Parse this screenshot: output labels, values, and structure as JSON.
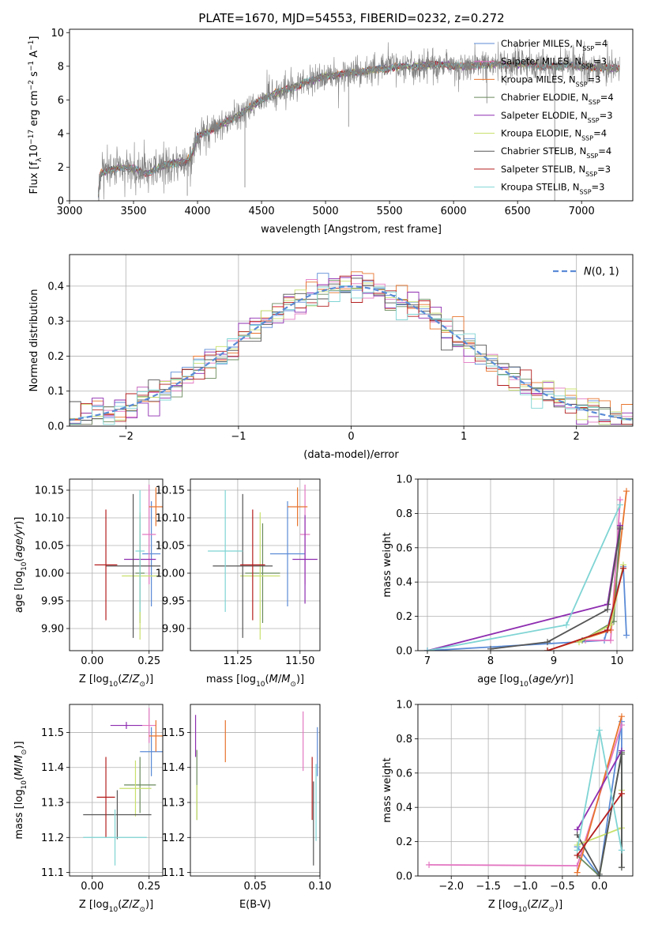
{
  "figure": {
    "title": "PLATE=1670, MJD=54553, FIBERID=0232, z=0.272"
  },
  "colors": {
    "chabrier_miles": "#5b8bd6",
    "salpeter_miles": "#e377c2",
    "kroupa_miles": "#e8742d",
    "chabrier_elodie": "#6a8a5c",
    "salpeter_elodie": "#8e2db0",
    "kroupa_elodie": "#c8e06c",
    "chabrier_stelib": "#555555",
    "salpeter_stelib": "#b41e1e",
    "kroupa_stelib": "#7fd4d4",
    "gaussian": "#5b8bd6",
    "spectrum": "#808080"
  },
  "chart_data": [
    {
      "id": "spectrum",
      "type": "line",
      "title": "PLATE=1670, MJD=54553, FIBERID=0232, z=0.272",
      "xlabel": "wavelength [Angstrom, rest frame]",
      "ylabel": "Flux [f_λ 10^-17 erg cm^-2 s^-1 A^-1]",
      "xlim": [
        3000,
        7400
      ],
      "ylim": [
        0,
        10.2
      ],
      "xticks": [
        3000,
        3500,
        4000,
        4500,
        5000,
        5500,
        6000,
        6500,
        7000
      ],
      "yticks": [
        0,
        2,
        4,
        6,
        8,
        10
      ],
      "grid": false,
      "legend_position": "top-right",
      "continuum": [
        [
          3220,
          0
        ],
        [
          3240,
          1.6
        ],
        [
          3300,
          1.8
        ],
        [
          3400,
          2.0
        ],
        [
          3500,
          1.9
        ],
        [
          3600,
          1.6
        ],
        [
          3700,
          2.0
        ],
        [
          3800,
          2.2
        ],
        [
          3900,
          2.3
        ],
        [
          3950,
          2.6
        ],
        [
          4000,
          3.8
        ],
        [
          4100,
          4.2
        ],
        [
          4200,
          4.6
        ],
        [
          4300,
          5.0
        ],
        [
          4400,
          5.5
        ],
        [
          4500,
          6.0
        ],
        [
          4600,
          6.4
        ],
        [
          4700,
          6.6
        ],
        [
          4800,
          6.9
        ],
        [
          4900,
          7.2
        ],
        [
          5000,
          7.4
        ],
        [
          5100,
          7.5
        ],
        [
          5200,
          7.6
        ],
        [
          5300,
          7.7
        ],
        [
          5400,
          7.8
        ],
        [
          5500,
          7.9
        ],
        [
          5600,
          8.0
        ],
        [
          5700,
          8.0
        ],
        [
          5800,
          8.1
        ],
        [
          5900,
          8.1
        ],
        [
          6000,
          8.0
        ],
        [
          6100,
          8.0
        ],
        [
          6200,
          8.1
        ],
        [
          6300,
          8.1
        ],
        [
          6400,
          8.1
        ],
        [
          6500,
          8.1
        ],
        [
          6600,
          8.1
        ],
        [
          6700,
          8.0
        ],
        [
          6800,
          8.0
        ],
        [
          6900,
          8.1
        ],
        [
          7000,
          8.0
        ],
        [
          7100,
          7.9
        ],
        [
          7200,
          7.9
        ],
        [
          7300,
          7.9
        ]
      ],
      "legend": [
        {
          "label": "Chabrier MILES, N_SSP=4",
          "base": "Chabrier MILES, N",
          "sub": "SSP",
          "tail": "=4",
          "color": "#5b8bd6"
        },
        {
          "label": "Salpeter MILES, N_SSP=3",
          "base": "Salpeter MILES, N",
          "sub": "SSP",
          "tail": "=3",
          "color": "#e377c2"
        },
        {
          "label": "Kroupa MILES, N_SSP=3",
          "base": "Kroupa MILES, N",
          "sub": "SSP",
          "tail": "=3",
          "color": "#e8742d"
        },
        {
          "label": "Chabrier ELODIE, N_SSP=4",
          "base": "Chabrier ELODIE, N",
          "sub": "SSP",
          "tail": "=4",
          "color": "#6a8a5c"
        },
        {
          "label": "Salpeter ELODIE, N_SSP=3",
          "base": "Salpeter ELODIE, N",
          "sub": "SSP",
          "tail": "=3",
          "color": "#8e2db0"
        },
        {
          "label": "Kroupa ELODIE, N_SSP=4",
          "base": "Kroupa ELODIE, N",
          "sub": "SSP",
          "tail": "=4",
          "color": "#c8e06c"
        },
        {
          "label": "Chabrier STELIB, N_SSP=4",
          "base": "Chabrier STELIB, N",
          "sub": "SSP",
          "tail": "=4",
          "color": "#555555"
        },
        {
          "label": "Salpeter STELIB, N_SSP=3",
          "base": "Salpeter STELIB, N",
          "sub": "SSP",
          "tail": "=3",
          "color": "#b41e1e"
        },
        {
          "label": "Kroupa STELIB, N_SSP=3",
          "base": "Kroupa STELIB, N",
          "sub": "SSP",
          "tail": "=3",
          "color": "#7fd4d4"
        }
      ]
    },
    {
      "id": "residuals",
      "type": "line",
      "xlabel": "(data-model)/error",
      "ylabel": "Normed distribution",
      "xlim": [
        -2.5,
        2.5
      ],
      "ylim": [
        0,
        0.49
      ],
      "xticks": [
        -2,
        -1,
        0,
        1,
        2
      ],
      "yticks": [
        0.0,
        0.1,
        0.2,
        0.3,
        0.4
      ],
      "grid": true,
      "legend_position": "top-right",
      "legend_label": "N(0,1)",
      "histogram_edges": [
        -2.5,
        2.5
      ],
      "bins": 50
    },
    {
      "id": "age_vs_Z",
      "type": "scatter",
      "xlabel": "Z [log10(Z/Z_sun)]",
      "ylabel": "age [log10(age/yr)]",
      "xlim": [
        -0.1,
        0.31
      ],
      "ylim": [
        9.86,
        10.17
      ],
      "xticks": [
        0.0,
        0.25
      ],
      "yticks": [
        9.9,
        9.95,
        10.0,
        10.05,
        10.1,
        10.15
      ],
      "grid": true,
      "points": [
        {
          "color": "#5b8bd6",
          "x": 0.26,
          "xerr": 0.04,
          "y": 10.035,
          "yerr": 0.095
        },
        {
          "color": "#e377c2",
          "x": 0.25,
          "xerr": 0.03,
          "y": 10.07,
          "yerr": 0.09
        },
        {
          "color": "#e8742d",
          "x": 0.28,
          "xerr": 0.03,
          "y": 10.12,
          "yerr": 0.035
        },
        {
          "color": "#6a8a5c",
          "x": 0.21,
          "xerr": 0.02,
          "y": 10.0,
          "yerr": 0.09
        },
        {
          "color": "#8e2db0",
          "x": 0.21,
          "xerr": 0.07,
          "y": 10.025,
          "yerr": 0.08
        },
        {
          "color": "#c8e06c",
          "x": 0.21,
          "xerr": 0.08,
          "y": 9.995,
          "yerr": 0.115
        },
        {
          "color": "#555555",
          "x": 0.18,
          "xerr": 0.12,
          "y": 10.013,
          "yerr": 0.13
        },
        {
          "color": "#b41e1e",
          "x": 0.06,
          "xerr": 0.05,
          "y": 10.015,
          "yerr": 0.1
        },
        {
          "color": "#7fd4d4",
          "x": 0.21,
          "xerr": 0.02,
          "y": 10.04,
          "yerr": 0.11
        }
      ]
    },
    {
      "id": "age_vs_mass",
      "type": "scatter",
      "xlabel": "mass [log10(M/M_sun)]",
      "ylabel": "",
      "xlim": [
        11.06,
        11.58
      ],
      "ylim": [
        9.86,
        10.17
      ],
      "xticks": [
        11.25,
        11.5
      ],
      "yticks": [
        9.9,
        9.95,
        10.0,
        10.05,
        10.1,
        10.15
      ],
      "grid": true,
      "points": [
        {
          "color": "#5b8bd6",
          "x": 11.45,
          "xerr": 0.07,
          "y": 10.035,
          "yerr": 0.095
        },
        {
          "color": "#e377c2",
          "x": 11.52,
          "xerr": 0.02,
          "y": 10.07,
          "yerr": 0.09
        },
        {
          "color": "#e8742d",
          "x": 11.49,
          "xerr": 0.04,
          "y": 10.12,
          "yerr": 0.035
        },
        {
          "color": "#6a8a5c",
          "x": 11.35,
          "xerr": 0.07,
          "y": 10.0,
          "yerr": 0.09
        },
        {
          "color": "#8e2db0",
          "x": 11.52,
          "xerr": 0.05,
          "y": 10.025,
          "yerr": 0.08
        },
        {
          "color": "#c8e06c",
          "x": 11.34,
          "xerr": 0.08,
          "y": 9.995,
          "yerr": 0.115
        },
        {
          "color": "#555555",
          "x": 11.27,
          "xerr": 0.12,
          "y": 10.013,
          "yerr": 0.13
        },
        {
          "color": "#b41e1e",
          "x": 11.31,
          "xerr": 0.05,
          "y": 10.015,
          "yerr": 0.1
        },
        {
          "color": "#7fd4d4",
          "x": 11.2,
          "xerr": 0.07,
          "y": 10.04,
          "yerr": 0.11
        }
      ]
    },
    {
      "id": "mass_weight_vs_age",
      "type": "line",
      "xlabel": "age [log10(age/yr)]",
      "ylabel": "mass weight",
      "xlim": [
        6.85,
        10.25
      ],
      "ylim": [
        0,
        1.0
      ],
      "xticks": [
        7,
        8,
        9,
        10
      ],
      "yticks": [
        0.0,
        0.2,
        0.4,
        0.6,
        0.8,
        1.0
      ],
      "grid": true,
      "series": [
        {
          "color": "#5b8bd6",
          "points": [
            [
              7.0,
              0.0
            ],
            [
              9.8,
              0.06
            ],
            [
              10.1,
              0.49
            ],
            [
              10.15,
              0.09
            ]
          ]
        },
        {
          "color": "#e377c2",
          "points": [
            [
              9.5,
              0.06
            ],
            [
              9.9,
              0.06
            ],
            [
              10.05,
              0.88
            ]
          ]
        },
        {
          "color": "#e8742d",
          "points": [
            [
              8.9,
              0.0
            ],
            [
              9.9,
              0.12
            ],
            [
              10.15,
              0.93
            ]
          ]
        },
        {
          "color": "#6a8a5c",
          "points": [
            [
              9.45,
              0.06
            ],
            [
              9.95,
              0.17
            ],
            [
              10.05,
              0.72
            ]
          ]
        },
        {
          "color": "#8e2db0",
          "points": [
            [
              7.0,
              0.0
            ],
            [
              9.85,
              0.27
            ],
            [
              10.05,
              0.73
            ]
          ]
        },
        {
          "color": "#c8e06c",
          "points": [
            [
              9.4,
              0.05
            ],
            [
              9.9,
              0.15
            ],
            [
              10.1,
              0.5
            ]
          ]
        },
        {
          "color": "#555555",
          "points": [
            [
              8.0,
              0.01
            ],
            [
              8.9,
              0.05
            ],
            [
              9.85,
              0.24
            ],
            [
              10.05,
              0.71
            ]
          ]
        },
        {
          "color": "#b41e1e",
          "points": [
            [
              8.9,
              0.0
            ],
            [
              9.85,
              0.12
            ],
            [
              10.1,
              0.48
            ]
          ]
        },
        {
          "color": "#7fd4d4",
          "points": [
            [
              7.0,
              0.0
            ],
            [
              9.2,
              0.15
            ],
            [
              10.05,
              0.85
            ]
          ]
        }
      ]
    },
    {
      "id": "mass_vs_Z",
      "type": "scatter",
      "xlabel": "Z [log10(Z/Z_sun)]",
      "ylabel": "mass [log10(M/M_sun)]",
      "xlim": [
        -0.1,
        0.31
      ],
      "ylim": [
        11.09,
        11.58
      ],
      "xticks": [
        0.0,
        0.25
      ],
      "yticks": [
        11.1,
        11.2,
        11.3,
        11.4,
        11.5
      ],
      "grid": true,
      "points": [
        {
          "color": "#5b8bd6",
          "x": 0.26,
          "xerr": 0.05,
          "y": 11.445,
          "yerr": 0.07
        },
        {
          "color": "#e377c2",
          "x": 0.25,
          "xerr": 0.03,
          "y": 11.52,
          "yerr": 0.05
        },
        {
          "color": "#e8742d",
          "x": 0.28,
          "xerr": 0.03,
          "y": 11.49,
          "yerr": 0.045
        },
        {
          "color": "#6a8a5c",
          "x": 0.21,
          "xerr": 0.07,
          "y": 11.35,
          "yerr": 0.08
        },
        {
          "color": "#8e2db0",
          "x": 0.15,
          "xerr": 0.07,
          "y": 11.52,
          "yerr": 0.01
        },
        {
          "color": "#c8e06c",
          "x": 0.19,
          "xerr": 0.07,
          "y": 11.34,
          "yerr": 0.08
        },
        {
          "color": "#555555",
          "x": 0.11,
          "xerr": 0.15,
          "y": 11.265,
          "yerr": 0.07
        },
        {
          "color": "#b41e1e",
          "x": 0.06,
          "xerr": 0.04,
          "y": 11.315,
          "yerr": 0.115
        },
        {
          "color": "#7fd4d4",
          "x": 0.1,
          "xerr": 0.14,
          "y": 11.2,
          "yerr": 0.08
        }
      ]
    },
    {
      "id": "mass_vs_EBV",
      "type": "scatter",
      "xlabel": "E(B-V)",
      "ylabel": "",
      "xlim": [
        0.0,
        0.1
      ],
      "ylim": [
        11.09,
        11.58
      ],
      "xticks": [
        0.05,
        0.1
      ],
      "yticks": [
        11.1,
        11.2,
        11.3,
        11.4,
        11.5
      ],
      "grid": true,
      "points": [
        {
          "color": "#5b8bd6",
          "x": 0.098,
          "xerr": 0,
          "y": 11.445,
          "yerr": 0.07
        },
        {
          "color": "#e377c2",
          "x": 0.087,
          "xerr": 0,
          "y": 11.475,
          "yerr": 0.085
        },
        {
          "color": "#e8742d",
          "x": 0.027,
          "xerr": 0,
          "y": 11.475,
          "yerr": 0.06
        },
        {
          "color": "#6a8a5c",
          "x": 0.005,
          "xerr": 0,
          "y": 11.35,
          "yerr": 0.1
        },
        {
          "color": "#8e2db0",
          "x": 0.004,
          "xerr": 0,
          "y": 11.49,
          "yerr": 0.06
        },
        {
          "color": "#c8e06c",
          "x": 0.005,
          "xerr": 0,
          "y": 11.3,
          "yerr": 0.05
        },
        {
          "color": "#555555",
          "x": 0.095,
          "xerr": 0,
          "y": 11.24,
          "yerr": 0.12
        },
        {
          "color": "#b41e1e",
          "x": 0.094,
          "xerr": 0,
          "y": 11.34,
          "yerr": 0.09
        },
        {
          "color": "#7fd4d4",
          "x": 0.097,
          "xerr": 0,
          "y": 11.3,
          "yerr": 0.11
        }
      ]
    },
    {
      "id": "mass_weight_vs_Z",
      "type": "line",
      "xlabel": "Z [log10(Z/Z_sun)]",
      "ylabel": "mass weight",
      "xlim": [
        -2.45,
        0.45
      ],
      "ylim": [
        0,
        1.0
      ],
      "xticks": [
        -2.0,
        -1.5,
        -1.0,
        -0.5,
        0.0
      ],
      "yticks": [
        0.0,
        0.2,
        0.4,
        0.6,
        0.8,
        1.0
      ],
      "grid": true,
      "series": [
        {
          "color": "#5b8bd6",
          "points": [
            [
              -0.3,
              0.17
            ],
            [
              0.0,
              0.0
            ],
            [
              0.3,
              0.9
            ],
            [
              0.3,
              0.15
            ]
          ]
        },
        {
          "color": "#e377c2",
          "points": [
            [
              -2.3,
              0.065
            ],
            [
              -0.3,
              0.06
            ],
            [
              0.3,
              0.88
            ]
          ]
        },
        {
          "color": "#e8742d",
          "points": [
            [
              -0.3,
              0.02
            ],
            [
              0.3,
              0.93
            ]
          ]
        },
        {
          "color": "#6a8a5c",
          "points": [
            [
              -0.3,
              0.12
            ],
            [
              0.0,
              0.0
            ],
            [
              0.3,
              0.72
            ],
            [
              0.3,
              0.05
            ]
          ]
        },
        {
          "color": "#8e2db0",
          "points": [
            [
              -0.3,
              0.27
            ],
            [
              0.3,
              0.73
            ]
          ]
        },
        {
          "color": "#c8e06c",
          "points": [
            [
              -0.3,
              0.18
            ],
            [
              0.3,
              0.28
            ],
            [
              0.3,
              0.5
            ]
          ]
        },
        {
          "color": "#555555",
          "points": [
            [
              -0.3,
              0.24
            ],
            [
              0.0,
              0.01
            ],
            [
              0.3,
              0.71
            ],
            [
              0.3,
              0.05
            ]
          ]
        },
        {
          "color": "#b41e1e",
          "points": [
            [
              -0.3,
              0.12
            ],
            [
              0.3,
              0.48
            ]
          ]
        },
        {
          "color": "#7fd4d4",
          "points": [
            [
              -0.3,
              0.15
            ],
            [
              0.0,
              0.85
            ],
            [
              0.3,
              0.15
            ]
          ]
        }
      ]
    }
  ]
}
